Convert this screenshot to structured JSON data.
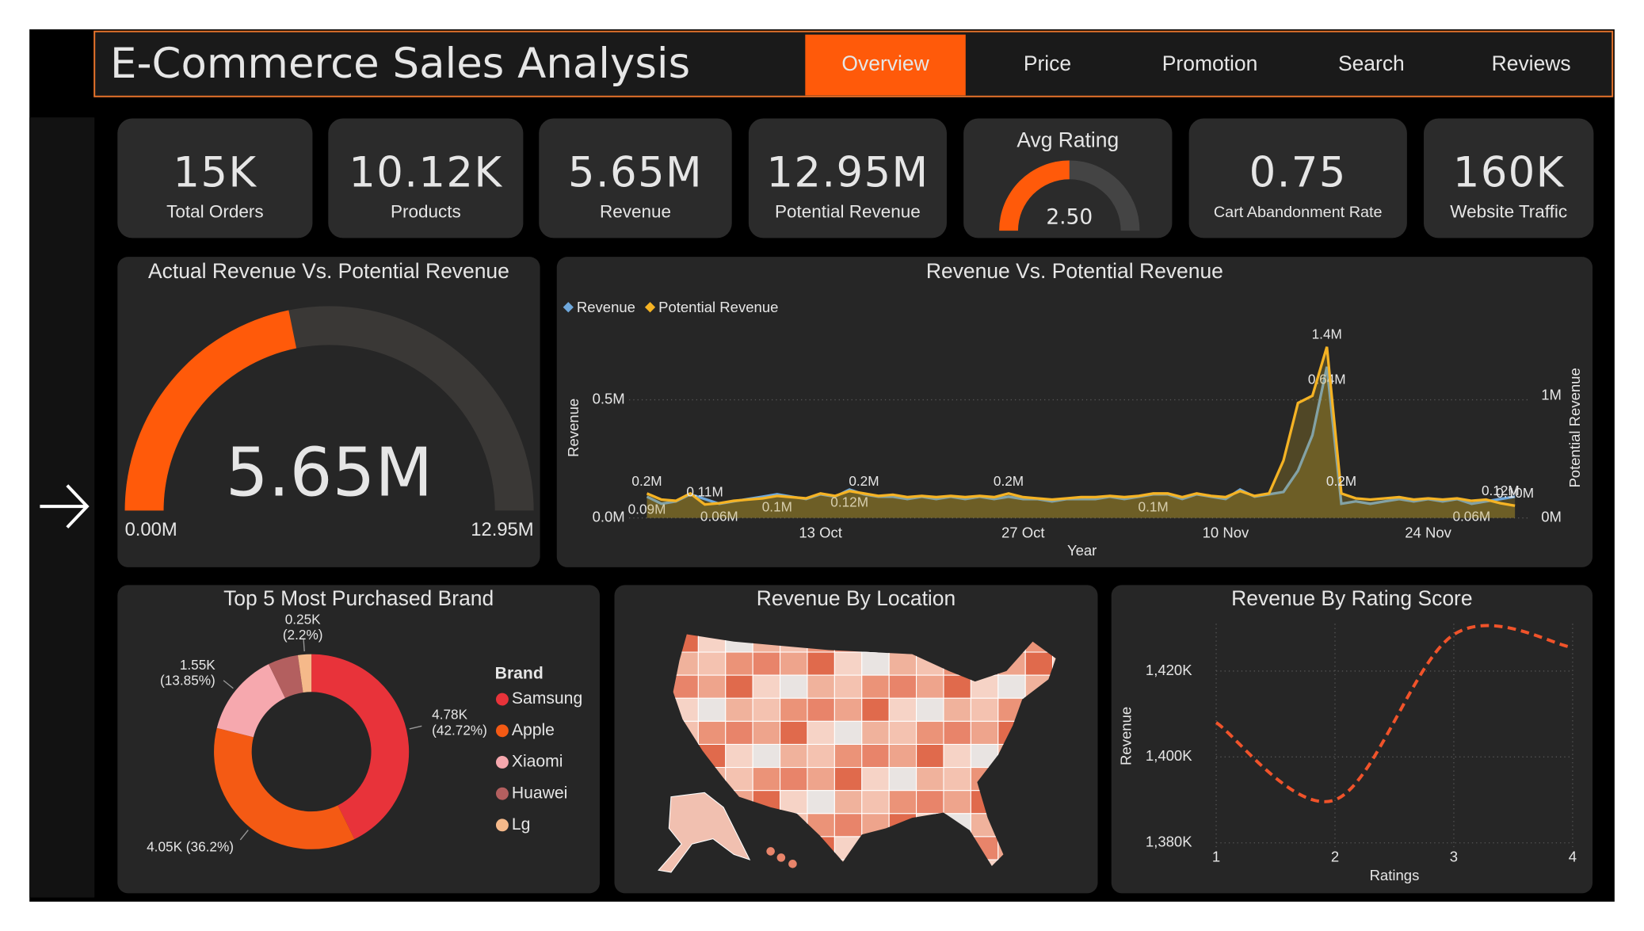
{
  "header": {
    "title": "E-Commerce Sales Analysis",
    "tabs": [
      "Overview",
      "Price",
      "Promotion",
      "Search",
      "Reviews"
    ],
    "active_tab": 0
  },
  "kpis": [
    {
      "value": "15K",
      "label": "Total Orders"
    },
    {
      "value": "10.12K",
      "label": "Products"
    },
    {
      "value": "5.65M",
      "label": "Revenue"
    },
    {
      "value": "12.95M",
      "label": "Potential Revenue"
    },
    {
      "value": "0.75",
      "label": "Cart Abandonment Rate"
    },
    {
      "value": "160K",
      "label": "Website Traffic"
    }
  ],
  "chart_data": [
    {
      "type": "gauge",
      "title": "Avg Rating",
      "value": 2.5,
      "value_label": "2.50",
      "ylim": [
        0,
        5
      ],
      "color": "#ff5a0a",
      "track_color": "#444444"
    },
    {
      "type": "gauge",
      "title": "Actual Revenue Vs. Potential Revenue",
      "value": 5.65,
      "value_label": "5.65M",
      "ylim": [
        0,
        12.95
      ],
      "yticks": [
        {
          "value": 0,
          "label": "0.00M"
        },
        {
          "value": 12.95,
          "label": "12.95M"
        }
      ],
      "color": "#ff5a0a",
      "track_color": "#3a3836"
    },
    {
      "type": "line",
      "title": "Revenue Vs. Potential Revenue",
      "x_label": "Year",
      "y_label": "Revenue",
      "y2_label": "Potential Revenue",
      "categories": [
        null,
        null,
        null,
        null,
        null,
        null,
        null,
        null,
        null,
        null,
        null,
        null,
        "13 Oct",
        null,
        null,
        null,
        null,
        null,
        null,
        null,
        null,
        null,
        null,
        null,
        null,
        null,
        "27 Oct",
        null,
        null,
        null,
        null,
        null,
        null,
        null,
        null,
        null,
        null,
        null,
        null,
        null,
        "10 Nov",
        null,
        null,
        null,
        null,
        null,
        null,
        null,
        null,
        null,
        null,
        null,
        null,
        null,
        "24 Nov",
        null,
        null,
        null,
        null,
        null,
        null
      ],
      "ylim": [
        0,
        0.75
      ],
      "yticks": [
        {
          "value": 0,
          "label": "0.0M"
        },
        {
          "value": 0.5,
          "label": "0.5M"
        }
      ],
      "y2lim": [
        0,
        1.45
      ],
      "y2ticks": [
        {
          "value": 0,
          "label": "0M"
        },
        {
          "value": 1,
          "label": "1M"
        }
      ],
      "grid": true,
      "series": [
        {
          "name": "Revenue",
          "color": "#6fa8dc",
          "values": [
            0.09,
            0.06,
            0.07,
            0.1,
            0.08,
            0.06,
            0.07,
            0.08,
            0.09,
            0.1,
            0.09,
            0.08,
            0.1,
            0.09,
            0.12,
            0.1,
            0.09,
            0.09,
            0.08,
            0.09,
            0.08,
            0.09,
            0.08,
            0.09,
            0.08,
            0.09,
            0.08,
            0.08,
            0.07,
            0.08,
            0.08,
            0.08,
            0.09,
            0.08,
            0.09,
            0.1,
            0.1,
            0.08,
            0.1,
            0.09,
            0.08,
            0.12,
            0.09,
            0.1,
            0.11,
            0.2,
            0.35,
            0.64,
            0.06,
            0.07,
            0.06,
            0.07,
            0.08,
            0.07,
            0.08,
            0.07,
            0.08,
            0.06,
            0.07,
            0.08,
            0.09
          ],
          "value_labels": [
            "0.09M",
            null,
            null,
            null,
            null,
            "0.06M",
            null,
            null,
            null,
            "0.1M",
            null,
            null,
            null,
            null,
            "0.12M",
            null,
            null,
            null,
            null,
            null,
            null,
            null,
            null,
            null,
            null,
            null,
            null,
            null,
            null,
            null,
            null,
            null,
            null,
            null,
            null,
            "0.1M",
            null,
            null,
            null,
            null,
            null,
            null,
            null,
            null,
            null,
            null,
            null,
            "0.64M",
            null,
            null,
            null,
            null,
            null,
            null,
            null,
            null,
            null,
            "0.06M",
            null,
            null,
            null
          ]
        },
        {
          "name": "Potential Revenue",
          "color": "#f5b324",
          "axis": "y2",
          "values": [
            0.2,
            0.15,
            0.14,
            0.2,
            0.11,
            0.12,
            0.14,
            0.15,
            0.16,
            0.18,
            0.17,
            0.16,
            0.2,
            0.18,
            0.22,
            0.2,
            0.18,
            0.19,
            0.17,
            0.18,
            0.17,
            0.18,
            0.17,
            0.18,
            0.17,
            0.2,
            0.17,
            0.16,
            0.15,
            0.16,
            0.17,
            0.17,
            0.18,
            0.17,
            0.18,
            0.2,
            0.2,
            0.17,
            0.2,
            0.18,
            0.17,
            0.22,
            0.18,
            0.2,
            0.47,
            0.94,
            1.0,
            1.4,
            0.2,
            0.16,
            0.15,
            0.16,
            0.17,
            0.15,
            0.16,
            0.15,
            0.16,
            0.14,
            0.15,
            0.12,
            0.1
          ],
          "value_labels": [
            "0.2M",
            null,
            null,
            null,
            "0.11M",
            null,
            null,
            null,
            null,
            null,
            null,
            null,
            null,
            null,
            null,
            "0.2M",
            null,
            null,
            null,
            null,
            null,
            null,
            null,
            null,
            null,
            "0.2M",
            null,
            null,
            null,
            null,
            null,
            null,
            null,
            null,
            null,
            null,
            null,
            null,
            null,
            null,
            null,
            null,
            null,
            null,
            null,
            null,
            null,
            "1.4M",
            "0.2M",
            null,
            null,
            null,
            null,
            null,
            null,
            null,
            null,
            null,
            null,
            "0.12M",
            "0.10M"
          ]
        }
      ]
    },
    {
      "type": "pie",
      "title": "Top 5 Most Purchased Brand",
      "legend_title": "Brand",
      "donut": true,
      "categories": [
        "Samsung",
        "Apple",
        "Xiaomi",
        "Huawei",
        "Lg"
      ],
      "values": [
        4.78,
        4.05,
        1.55,
        0.56,
        0.25
      ],
      "value_labels": [
        "4.78K (42.72%)",
        "4.05K (36.2%)",
        "1.55K (13.85%)",
        null,
        "0.25K (2.2%)"
      ],
      "colors": [
        "#e8333a",
        "#f45a14",
        "#f6a8ae",
        "#b35f5f",
        "#f5b98a"
      ]
    },
    {
      "type": "map",
      "title": "Revenue By Location"
    },
    {
      "type": "line",
      "title": "Revenue By Rating Score",
      "x_label": "Ratings",
      "y_label": "Revenue",
      "x": [
        1,
        2,
        3,
        4
      ],
      "values": [
        1408,
        1390,
        1428.5,
        1425.5
      ],
      "color": "#f0532a",
      "line_style": "dashed",
      "smooth": true,
      "xlim": [
        1,
        4
      ],
      "xticks": [
        1,
        2,
        3,
        4
      ],
      "ylim": [
        1379,
        1431
      ],
      "yticks": [
        {
          "value": 1380,
          "label": "1,380K"
        },
        {
          "value": 1400,
          "label": "1,400K"
        },
        {
          "value": 1420,
          "label": "1,420K"
        }
      ],
      "grid": true
    }
  ]
}
